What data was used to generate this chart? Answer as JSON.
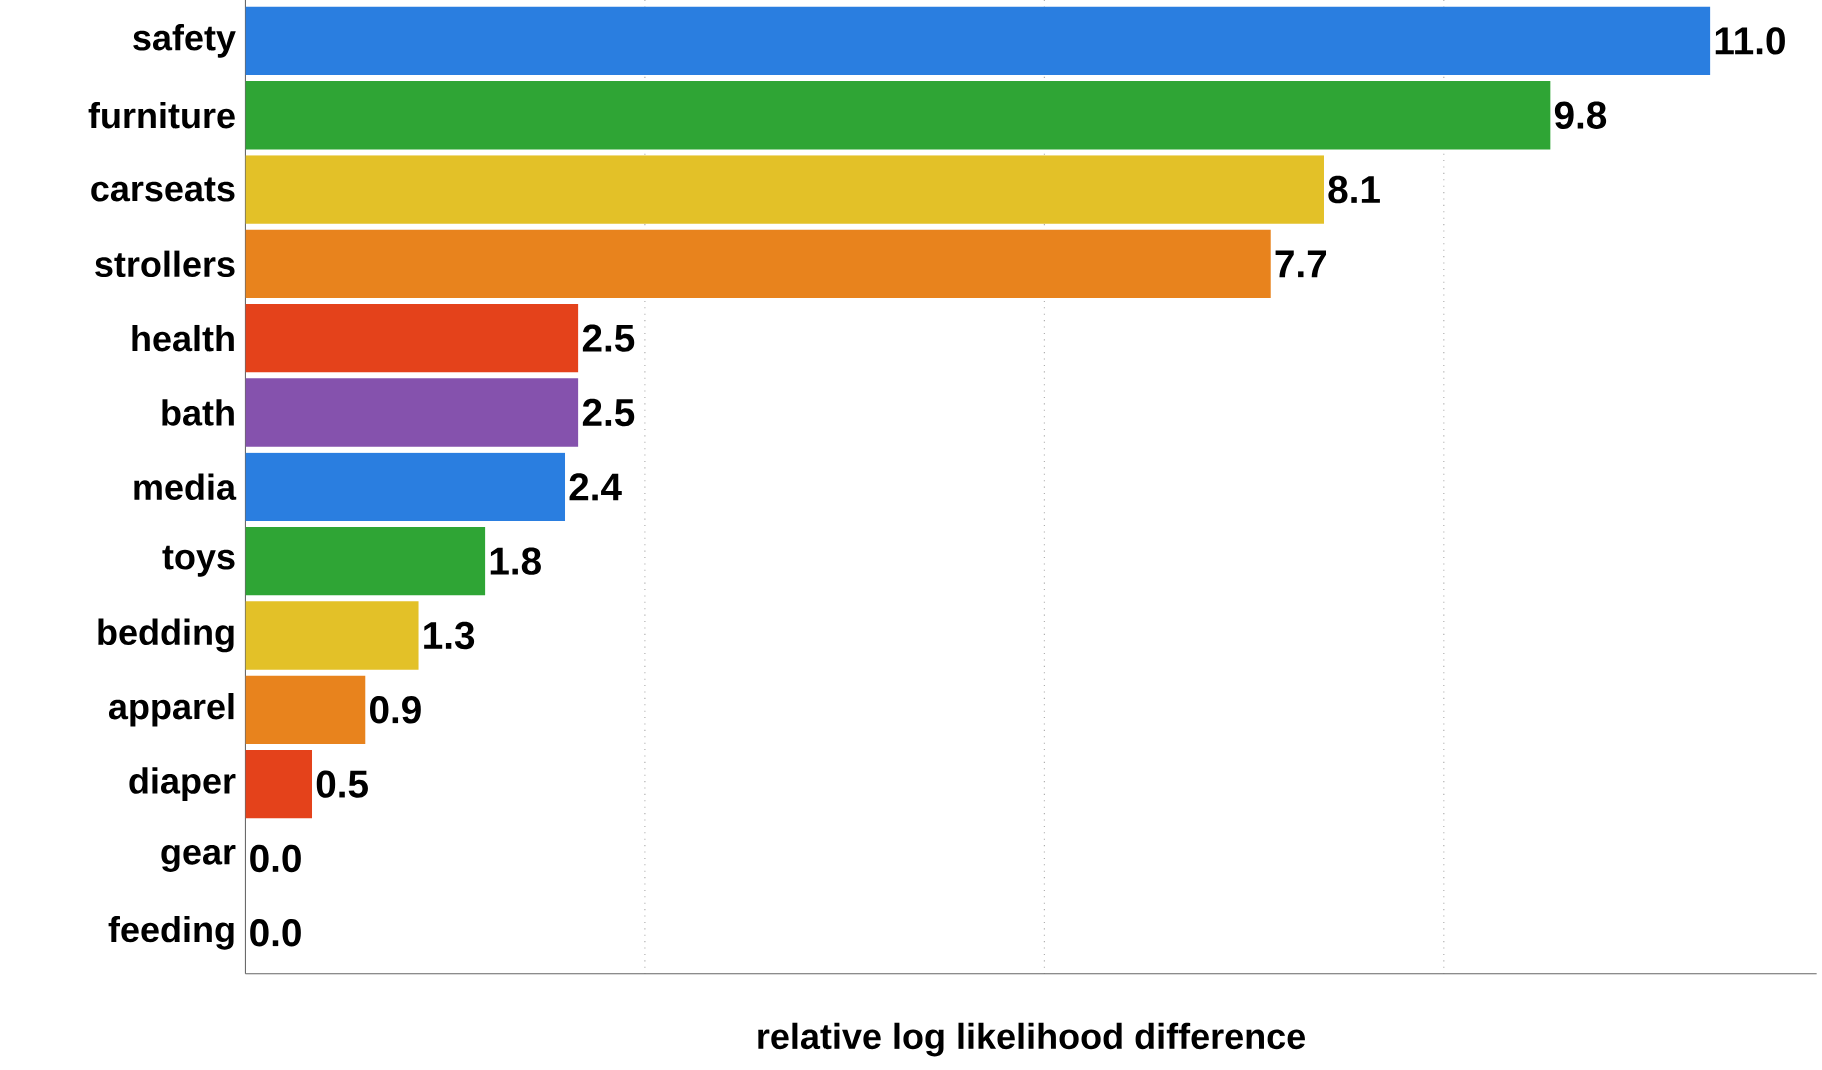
{
  "chart_data": {
    "type": "bar",
    "orientation": "horizontal",
    "xlabel": "relative log likelihood difference",
    "categories": [
      "safety",
      "furniture",
      "carseats",
      "strollers",
      "health",
      "bath",
      "media",
      "toys",
      "bedding",
      "apparel",
      "diaper",
      "gear",
      "feeding"
    ],
    "values": [
      11.0,
      9.8,
      8.1,
      7.7,
      2.5,
      2.5,
      2.4,
      1.8,
      1.3,
      0.9,
      0.5,
      0.0,
      0.0
    ],
    "colors": [
      "#2a7ee0",
      "#2fa535",
      "#e3c128",
      "#e8831d",
      "#e4421b",
      "#8552ad",
      "#2a7ee0",
      "#2fa535",
      "#e3c128",
      "#e8831d",
      "#e4421b",
      "#2a7ee0",
      "#2fa535"
    ],
    "xlim": [
      0,
      11.8
    ],
    "xticks": [
      {
        "value": 3,
        "label": null
      },
      {
        "value": 6,
        "label": null
      },
      {
        "value": 9,
        "label": null
      }
    ],
    "value_labels": [
      "11.0",
      "9.8",
      "8.1",
      "7.7",
      "2.5",
      "2.5",
      "2.4",
      "1.8",
      "1.3",
      "0.9",
      "0.5",
      "0.0",
      "0.0"
    ],
    "grid": "x",
    "tick_labels": "y"
  }
}
